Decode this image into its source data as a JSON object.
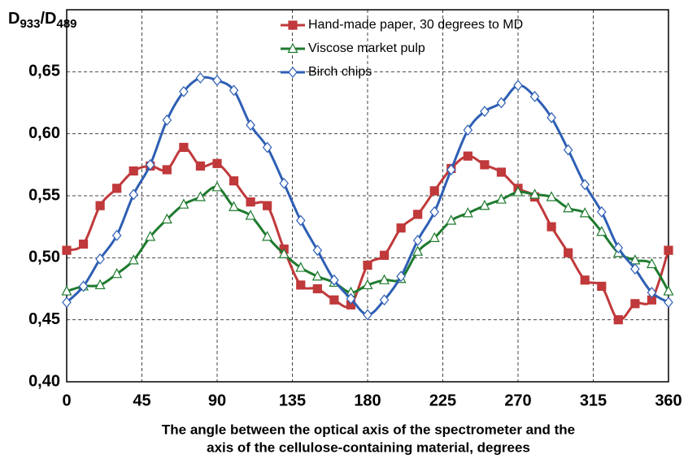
{
  "chart_data": {
    "type": "line",
    "ylabel": [
      "D",
      "933",
      "/D",
      "489"
    ],
    "xlabel": [
      "The angle between the optical axis of the spectrometer and the",
      "axis of the cellulose-containing material, degrees"
    ],
    "x": [
      0,
      10,
      20,
      30,
      40,
      50,
      60,
      70,
      80,
      90,
      100,
      110,
      120,
      130,
      140,
      150,
      160,
      170,
      180,
      190,
      200,
      210,
      220,
      230,
      240,
      250,
      260,
      270,
      280,
      290,
      300,
      310,
      320,
      330,
      340,
      350,
      360
    ],
    "series": [
      {
        "name": "Hand-made paper, 30 degrees to MD",
        "color": "#c0393b",
        "marker": "square",
        "values": [
          0.506,
          0.511,
          0.542,
          0.556,
          0.57,
          0.574,
          0.571,
          0.589,
          0.574,
          0.576,
          0.562,
          0.545,
          0.542,
          0.507,
          0.478,
          0.475,
          0.466,
          0.462,
          0.494,
          0.502,
          0.524,
          0.535,
          0.554,
          0.572,
          0.582,
          0.575,
          0.569,
          0.556,
          0.549,
          0.525,
          0.504,
          0.482,
          0.477,
          0.45,
          0.463,
          0.466,
          0.506
        ]
      },
      {
        "name": "Viscose market pulp",
        "color": "#1e7a2e",
        "marker": "triangle",
        "values": [
          0.473,
          0.477,
          0.478,
          0.487,
          0.498,
          0.517,
          0.531,
          0.543,
          0.549,
          0.557,
          0.541,
          0.534,
          0.517,
          0.503,
          0.492,
          0.485,
          0.48,
          0.472,
          0.478,
          0.482,
          0.483,
          0.505,
          0.516,
          0.53,
          0.536,
          0.542,
          0.547,
          0.553,
          0.551,
          0.549,
          0.54,
          0.536,
          0.521,
          0.504,
          0.498,
          0.495,
          0.473
        ]
      },
      {
        "name": "Birch chips",
        "color": "#2e5fb4",
        "marker": "diamond",
        "values": [
          0.464,
          0.477,
          0.499,
          0.518,
          0.551,
          0.575,
          0.611,
          0.634,
          0.645,
          0.643,
          0.635,
          0.607,
          0.589,
          0.56,
          0.53,
          0.506,
          0.482,
          0.467,
          0.454,
          0.466,
          0.485,
          0.514,
          0.537,
          0.571,
          0.603,
          0.618,
          0.625,
          0.639,
          0.63,
          0.613,
          0.587,
          0.559,
          0.537,
          0.508,
          0.491,
          0.472,
          0.464
        ]
      }
    ],
    "xlim": [
      0,
      360
    ],
    "xticks": [
      0,
      45,
      90,
      135,
      180,
      225,
      270,
      315,
      360
    ],
    "ylim": [
      0.4,
      0.7
    ],
    "yticks": [
      {
        "value": 0.4,
        "label": "0,40"
      },
      {
        "value": 0.45,
        "label": "0,45"
      },
      {
        "value": 0.5,
        "label": "0,50"
      },
      {
        "value": 0.55,
        "label": "0,55"
      },
      {
        "value": 0.6,
        "label": "0,60"
      },
      {
        "value": 0.65,
        "label": "0,65"
      }
    ],
    "grid": true,
    "legend": "upper center"
  }
}
